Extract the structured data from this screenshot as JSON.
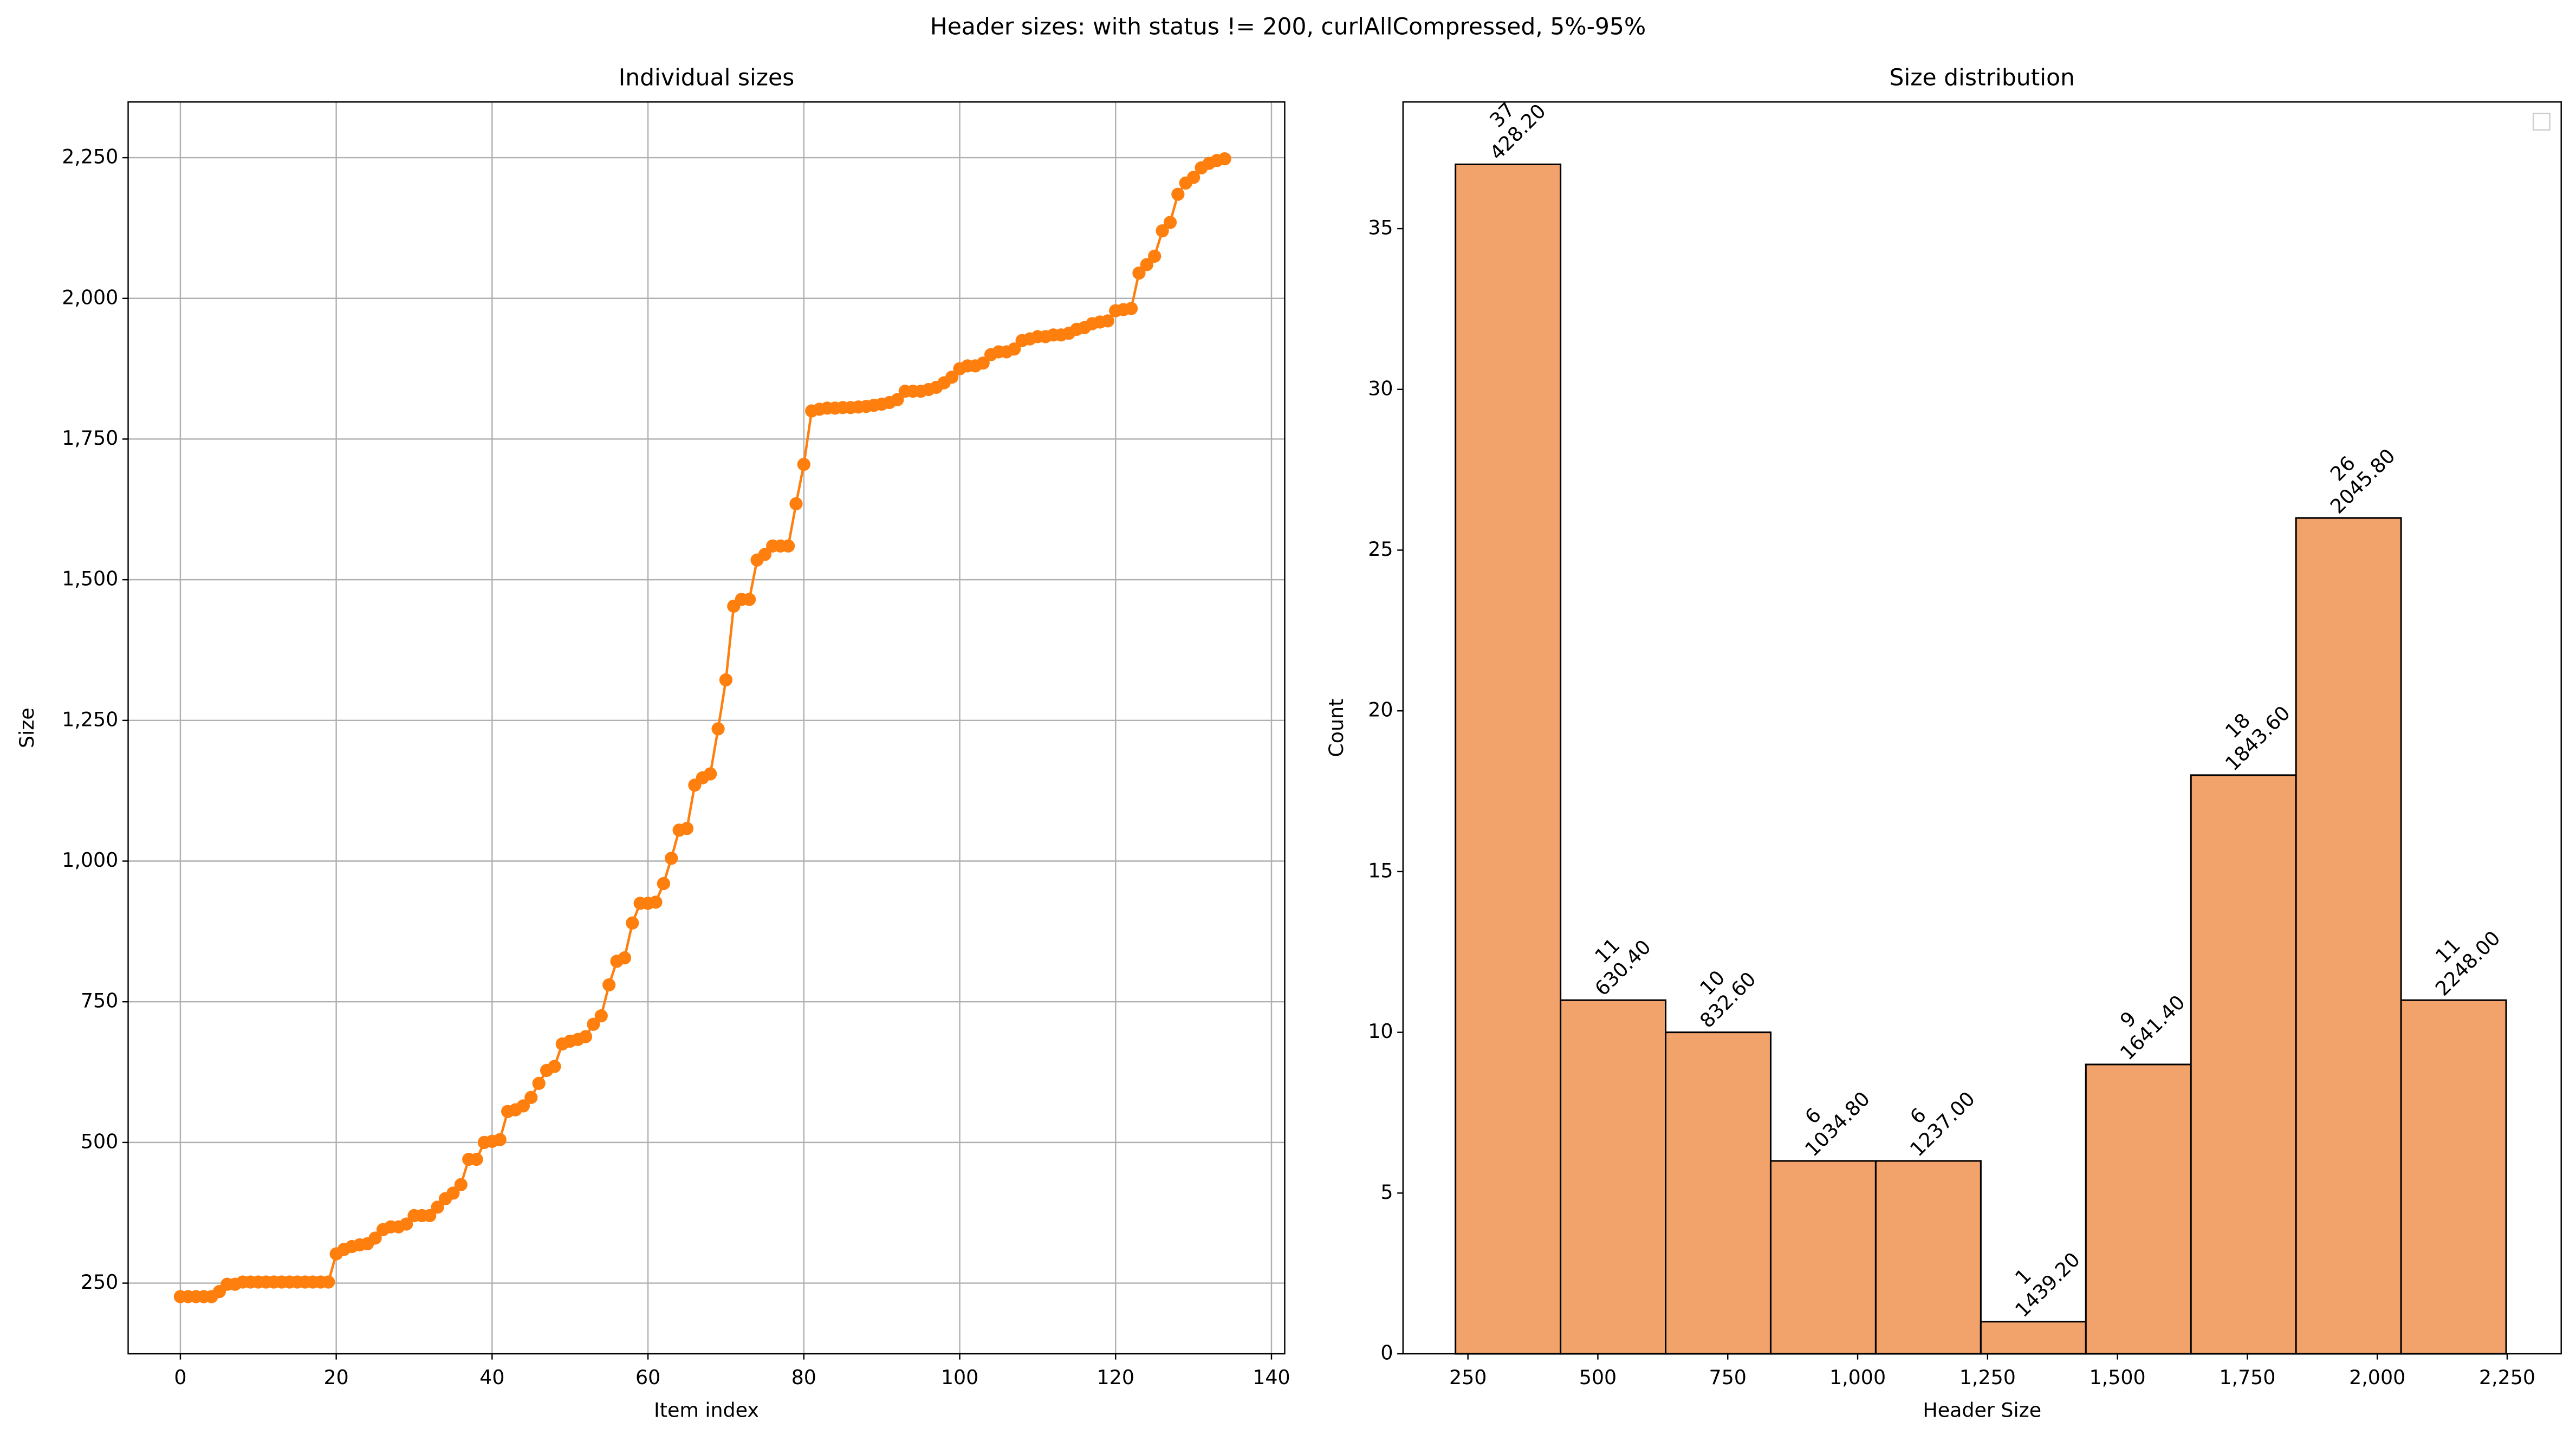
{
  "title": "Header sizes: with status != 200, curlAllCompressed, 5%-95%",
  "chart_data": [
    {
      "type": "line",
      "title": "Individual sizes",
      "xlabel": "Item index",
      "ylabel": "Size",
      "color": "#ff7f0e",
      "grid": true,
      "x": [
        0,
        1,
        2,
        3,
        4,
        5,
        6,
        7,
        8,
        9,
        10,
        11,
        12,
        13,
        14,
        15,
        16,
        17,
        18,
        19,
        20,
        21,
        22,
        23,
        24,
        25,
        26,
        27,
        28,
        29,
        30,
        31,
        32,
        33,
        34,
        35,
        36,
        37,
        38,
        39,
        40,
        41,
        42,
        43,
        44,
        45,
        46,
        47,
        48,
        49,
        50,
        51,
        52,
        53,
        54,
        55,
        56,
        57,
        58,
        59,
        60,
        61,
        62,
        63,
        64,
        65,
        66,
        67,
        68,
        69,
        70,
        71,
        72,
        73,
        74,
        75,
        76,
        77,
        78,
        79,
        80,
        81,
        82,
        83,
        84,
        85,
        86,
        87,
        88,
        89,
        90,
        91,
        92,
        93,
        94,
        95,
        96,
        97,
        98,
        99,
        100,
        101,
        102,
        103,
        104,
        105,
        106,
        107,
        108,
        109,
        110,
        111,
        112,
        113,
        114,
        115,
        116,
        117,
        118,
        119,
        120,
        121,
        122,
        123,
        124,
        125,
        126,
        127,
        128,
        129,
        130,
        131,
        132,
        133,
        134
      ],
      "values": [
        226,
        226,
        226,
        226,
        226,
        235,
        248,
        248,
        252,
        252,
        252,
        252,
        252,
        252,
        252,
        252,
        252,
        252,
        252,
        252,
        302,
        310,
        315,
        318,
        320,
        330,
        345,
        350,
        350,
        355,
        370,
        370,
        370,
        385,
        400,
        410,
        425,
        470,
        470,
        500,
        502,
        505,
        555,
        558,
        565,
        580,
        605,
        628,
        635,
        675,
        680,
        683,
        688,
        710,
        725,
        780,
        822,
        828,
        890,
        925,
        925,
        927,
        960,
        1005,
        1055,
        1058,
        1135,
        1148,
        1155,
        1235,
        1322,
        1453,
        1465,
        1465,
        1535,
        1545,
        1560,
        1560,
        1560,
        1635,
        1705,
        1800,
        1803,
        1805,
        1805,
        1806,
        1806,
        1807,
        1808,
        1810,
        1812,
        1815,
        1820,
        1835,
        1835,
        1835,
        1838,
        1842,
        1850,
        1860,
        1875,
        1880,
        1880,
        1885,
        1900,
        1905,
        1905,
        1910,
        1925,
        1928,
        1932,
        1932,
        1935,
        1935,
        1938,
        1945,
        1948,
        1955,
        1958,
        1960,
        1978,
        1980,
        1982,
        2045,
        2060,
        2075,
        2120,
        2135,
        2185,
        2205,
        2215,
        2232,
        2240,
        2245,
        2248
      ],
      "xlim": [
        -6.7,
        141.7
      ],
      "ylim": [
        124.4,
        2349
      ],
      "xticks": [
        0,
        20,
        40,
        60,
        80,
        100,
        120,
        140
      ],
      "yticks": [
        250,
        500,
        750,
        {
          "value": 1000,
          "label": "1,000"
        },
        {
          "value": 1250,
          "label": "1,250"
        },
        {
          "value": 1500,
          "label": "1,500"
        },
        {
          "value": 1750,
          "label": "1,750"
        },
        {
          "value": 2000,
          "label": "2,000"
        },
        {
          "value": 2250,
          "label": "2,250"
        }
      ]
    },
    {
      "type": "histogram",
      "title": "Size distribution",
      "xlabel": "Header Size",
      "ylabel": "Count",
      "color": "#f2a36c",
      "edgecolor": "#000000",
      "grid": false,
      "legend": "upper right",
      "bins": [
        226,
        428.2,
        630.4,
        832.6,
        1034.8,
        1237,
        1439.2,
        1641.4,
        1843.6,
        2045.8,
        2248
      ],
      "values": [
        37,
        11,
        10,
        6,
        6,
        1,
        9,
        18,
        26,
        11
      ],
      "edge_labels": [
        "428.20",
        "630.40",
        "832.60",
        "1034.80",
        "1237.00",
        "1439.20",
        "1641.40",
        "1843.60",
        "2045.80",
        "2248.00"
      ],
      "xlim": [
        125,
        2354
      ],
      "ylim": [
        0,
        38.94
      ],
      "xticks": [
        250,
        500,
        750,
        {
          "value": 1000,
          "label": "1,000"
        },
        {
          "value": 1250,
          "label": "1,250"
        },
        {
          "value": 1500,
          "label": "1,500"
        },
        {
          "value": 1750,
          "label": "1,750"
        },
        {
          "value": 2000,
          "label": "2,000"
        },
        {
          "value": 2250,
          "label": "2,250"
        }
      ],
      "yticks": [
        0,
        5,
        10,
        15,
        20,
        25,
        30,
        35
      ]
    }
  ]
}
